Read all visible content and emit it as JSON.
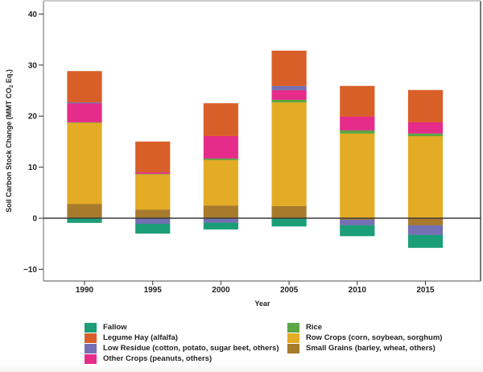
{
  "chart_data": {
    "type": "bar",
    "stacked": true,
    "title": "",
    "xlabel": "Year",
    "ylabel": "Soil Carbon Stock Change (MMT CO2 Eq.)",
    "ylabel_parts": {
      "main": "Soil Carbon Stock Change  (MMT CO",
      "sub": "2",
      "end": " Eq.)"
    },
    "ylim": [
      -12.5,
      42
    ],
    "yticks": [
      40,
      30,
      20,
      10,
      0,
      -10
    ],
    "ytick_labels": [
      "40",
      "30",
      "20",
      "10",
      "0",
      "−10"
    ],
    "categories": [
      "1990",
      "1995",
      "2000",
      "2005",
      "2010",
      "2015"
    ],
    "legend_position": "bottom",
    "series": [
      {
        "name": "Small Grains (barley, wheat, others)",
        "color": "#a87a2c",
        "values": [
          2.8,
          1.7,
          2.5,
          2.4,
          -0.3,
          -1.4
        ]
      },
      {
        "name": "Row Crops (corn, soybean, sorghum)",
        "color": "#e4ab25",
        "values": [
          15.9,
          6.9,
          8.9,
          20.3,
          16.6,
          16.1
        ]
      },
      {
        "name": "Rice",
        "color": "#5ba744",
        "values": [
          0.1,
          0.1,
          0.3,
          0.5,
          0.6,
          0.5
        ]
      },
      {
        "name": "Other Crops (peanuts, others)",
        "color": "#e52c8a",
        "values": [
          3.7,
          0.3,
          4.4,
          1.9,
          2.7,
          2.2
        ]
      },
      {
        "name": "Low Residue (cotton, potato, sugar beet, others)",
        "color": "#7570b3",
        "values": [
          0.2,
          -1.1,
          -0.9,
          0.8,
          -1.1,
          -1.9
        ]
      },
      {
        "name": "Legume Hay (alfalfa)",
        "color": "#d95f28",
        "values": [
          6.1,
          6.0,
          6.4,
          6.9,
          6.0,
          6.3
        ]
      },
      {
        "name": "Fallow",
        "color": "#1b9e77",
        "values": [
          -0.9,
          -1.9,
          -1.3,
          -1.6,
          -2.1,
          -2.5
        ]
      }
    ],
    "legend": {
      "left_column": [
        "Fallow",
        "Legume Hay (alfalfa)",
        "Low Residue (cotton, potato, sugar beet, others)",
        "Other Crops (peanuts, others)"
      ],
      "right_column": [
        "Rice",
        "Row Crops (corn, soybean, sorghum)",
        "Small Grains (barley, wheat, others)"
      ]
    },
    "zero_line": true,
    "grid": false
  }
}
